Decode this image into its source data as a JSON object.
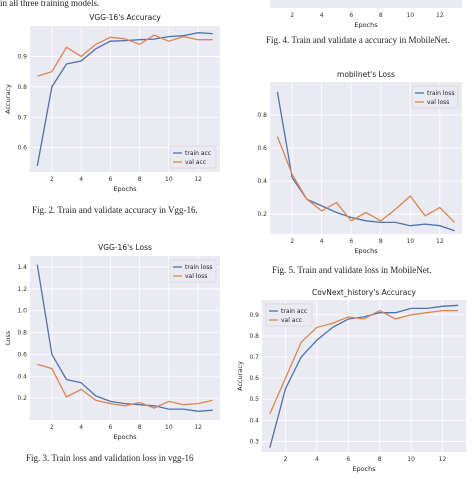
{
  "page": {
    "top_text": "in all three training models.",
    "captions": {
      "fig2": "Fig. 2. Train and validate accuracy in Vgg-16.",
      "fig3": "Fig. 3. Train loss and validation loss in vgg-16",
      "fig4": "Fig. 4. Train and validate a accuracy in MobileNet.",
      "fig5": "Fig. 5. Train and validate  loss in MobileNet."
    }
  },
  "colors": {
    "train": "#4c72b0",
    "val": "#dd8452",
    "panel": "#eaeaf2",
    "grid": "#ffffff"
  },
  "chart_data": [
    {
      "id": "vgg16-acc",
      "type": "line",
      "title": "VGG-16's Accuracy",
      "xlabel": "Epochs",
      "ylabel": "Accuracy",
      "xlim": [
        0.5,
        13.5
      ],
      "ylim": [
        0.52,
        1.0
      ],
      "xticks": [
        2,
        4,
        6,
        8,
        10,
        12
      ],
      "yticks": [
        0.6,
        0.7,
        0.8,
        0.9
      ],
      "legend": "lower-right",
      "x": [
        1,
        2,
        3,
        4,
        5,
        6,
        7,
        8,
        9,
        10,
        11,
        12,
        13
      ],
      "series": [
        {
          "name": "train acc",
          "color": "#4c72b0",
          "values": [
            0.54,
            0.8,
            0.875,
            0.885,
            0.925,
            0.95,
            0.952,
            0.955,
            0.957,
            0.965,
            0.968,
            0.978,
            0.975
          ]
        },
        {
          "name": "val acc",
          "color": "#dd8452",
          "values": [
            0.835,
            0.85,
            0.93,
            0.9,
            0.94,
            0.963,
            0.958,
            0.94,
            0.97,
            0.95,
            0.965,
            0.955,
            0.955
          ]
        }
      ]
    },
    {
      "id": "vgg16-loss",
      "type": "line",
      "title": "VGG-16's Loss",
      "xlabel": "Epochs",
      "ylabel": "Loss",
      "xlim": [
        0.5,
        13.5
      ],
      "ylim": [
        0.0,
        1.5
      ],
      "xticks": [
        2,
        4,
        6,
        8,
        10,
        12
      ],
      "yticks": [
        0.2,
        0.4,
        0.6,
        0.8,
        1.0,
        1.2,
        1.4
      ],
      "legend": "top-right",
      "x": [
        1,
        2,
        3,
        4,
        5,
        6,
        7,
        8,
        9,
        10,
        11,
        12,
        13
      ],
      "series": [
        {
          "name": "train loss",
          "color": "#4c72b0",
          "values": [
            1.42,
            0.6,
            0.37,
            0.34,
            0.22,
            0.17,
            0.15,
            0.14,
            0.13,
            0.1,
            0.1,
            0.08,
            0.09
          ]
        },
        {
          "name": "val loss",
          "color": "#dd8452",
          "values": [
            0.51,
            0.47,
            0.21,
            0.28,
            0.18,
            0.15,
            0.13,
            0.16,
            0.11,
            0.17,
            0.14,
            0.15,
            0.18
          ]
        }
      ]
    },
    {
      "id": "mobilenet-acc-partial",
      "type": "line",
      "title": "",
      "xlabel": "Epochs",
      "ylabel": "",
      "xlim": [
        0.5,
        13.5
      ],
      "xticks": [
        2,
        4,
        6,
        8,
        10,
        12
      ],
      "note_visible": "only bottom axis visible"
    },
    {
      "id": "mobilenet-loss",
      "type": "line",
      "title": "mobilnet's Loss",
      "xlabel": "Epochs",
      "ylabel": "",
      "xlim": [
        0.5,
        13.5
      ],
      "ylim": [
        0.08,
        1.0
      ],
      "xticks": [
        2,
        4,
        6,
        8,
        10,
        12
      ],
      "yticks": [
        0.2,
        0.4,
        0.6,
        0.8
      ],
      "legend": "top-right",
      "x": [
        1,
        2,
        3,
        4,
        5,
        6,
        7,
        8,
        9,
        10,
        11,
        12,
        13
      ],
      "series": [
        {
          "name": "train loss",
          "color": "#4c72b0",
          "values": [
            0.94,
            0.42,
            0.29,
            0.25,
            0.21,
            0.18,
            0.16,
            0.15,
            0.15,
            0.13,
            0.14,
            0.13,
            0.1
          ]
        },
        {
          "name": "val loss",
          "color": "#dd8452",
          "values": [
            0.67,
            0.44,
            0.29,
            0.22,
            0.27,
            0.16,
            0.21,
            0.16,
            0.23,
            0.31,
            0.19,
            0.24,
            0.15
          ]
        }
      ]
    },
    {
      "id": "covnext-acc",
      "type": "line",
      "title": "CovNext_history's Accuracy",
      "xlabel": "Epochs",
      "ylabel": "Accuracy",
      "xlim": [
        0.5,
        13.5
      ],
      "ylim": [
        0.25,
        0.97
      ],
      "xticks": [
        2,
        4,
        6,
        8,
        10,
        12
      ],
      "yticks": [
        0.3,
        0.4,
        0.5,
        0.6,
        0.7,
        0.8,
        0.9
      ],
      "legend": "top-left",
      "x": [
        1,
        2,
        3,
        4,
        5,
        6,
        7,
        8,
        9,
        10,
        11,
        12,
        13
      ],
      "series": [
        {
          "name": "train acc",
          "color": "#4c72b0",
          "values": [
            0.27,
            0.55,
            0.7,
            0.78,
            0.84,
            0.88,
            0.89,
            0.91,
            0.91,
            0.93,
            0.93,
            0.94,
            0.945
          ]
        },
        {
          "name": "val acc",
          "color": "#dd8452",
          "values": [
            0.43,
            0.6,
            0.77,
            0.84,
            0.86,
            0.89,
            0.88,
            0.92,
            0.88,
            0.9,
            0.91,
            0.92,
            0.92
          ]
        }
      ]
    }
  ]
}
